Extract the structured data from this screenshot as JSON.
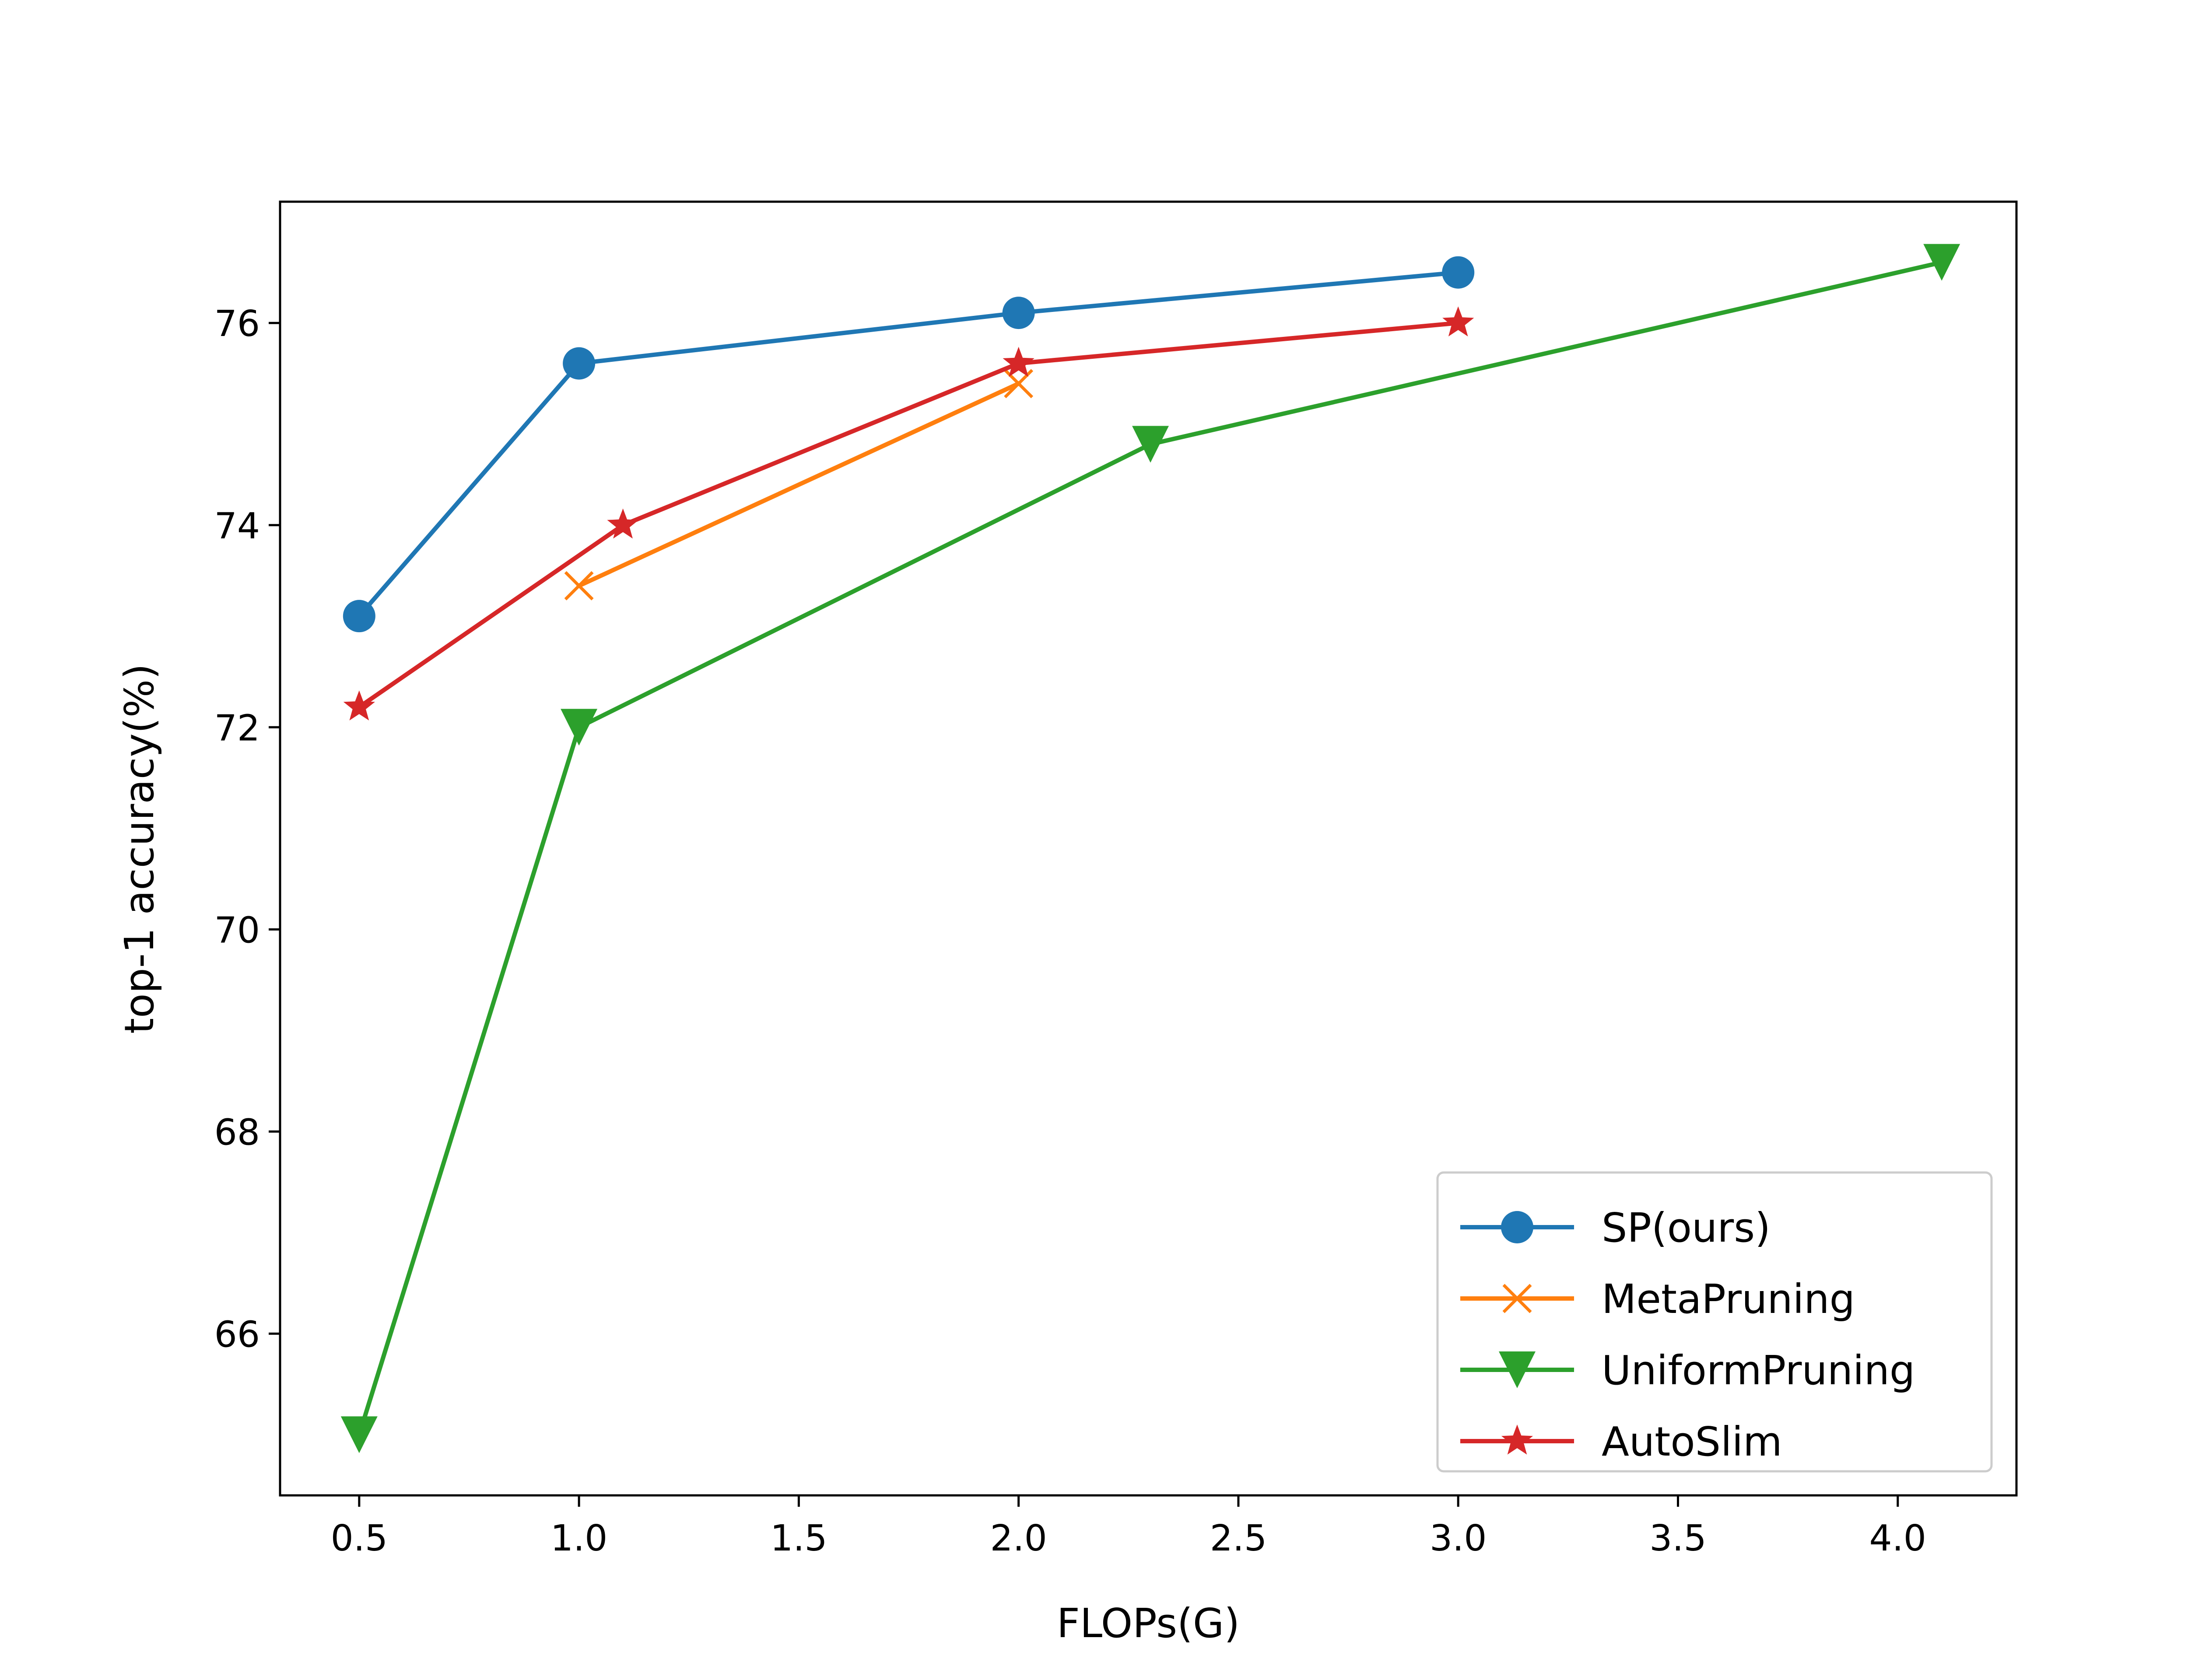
{
  "chart_data": {
    "type": "line",
    "title": "",
    "xlabel": "FLOPs(G)",
    "ylabel": "top-1 accuracy(%)",
    "xlim": [
      0.32,
      4.27
    ],
    "ylim": [
      64.4,
      77.2
    ],
    "xticks": [
      0.5,
      1.0,
      1.5,
      2.0,
      2.5,
      3.0,
      3.5,
      4.0
    ],
    "xtick_labels": [
      "0.5",
      "1.0",
      "1.5",
      "2.0",
      "2.5",
      "3.0",
      "3.5",
      "4.0"
    ],
    "yticks": [
      66,
      68,
      70,
      72,
      74,
      76
    ],
    "ytick_labels": [
      "66",
      "68",
      "70",
      "72",
      "74",
      "76"
    ],
    "grid": false,
    "legend_position": "lower-right",
    "series": [
      {
        "name": "SP(ours)",
        "color": "#1f77b4",
        "marker": "circle",
        "x": [
          0.5,
          1.0,
          2.0,
          3.0
        ],
        "y": [
          73.1,
          75.6,
          76.1,
          76.5
        ]
      },
      {
        "name": "MetaPruning",
        "color": "#ff7f0e",
        "marker": "x",
        "x": [
          1.0,
          2.0
        ],
        "y": [
          73.4,
          75.4
        ]
      },
      {
        "name": "UniformPruning",
        "color": "#2ca02c",
        "marker": "triangle-down",
        "x": [
          0.5,
          1.0,
          2.3,
          4.1
        ],
        "y": [
          65.0,
          72.0,
          74.8,
          76.6
        ]
      },
      {
        "name": "AutoSlim",
        "color": "#d62728",
        "marker": "star",
        "x": [
          0.5,
          1.1,
          2.0,
          3.0
        ],
        "y": [
          72.2,
          74.0,
          75.6,
          76.0
        ]
      }
    ]
  }
}
